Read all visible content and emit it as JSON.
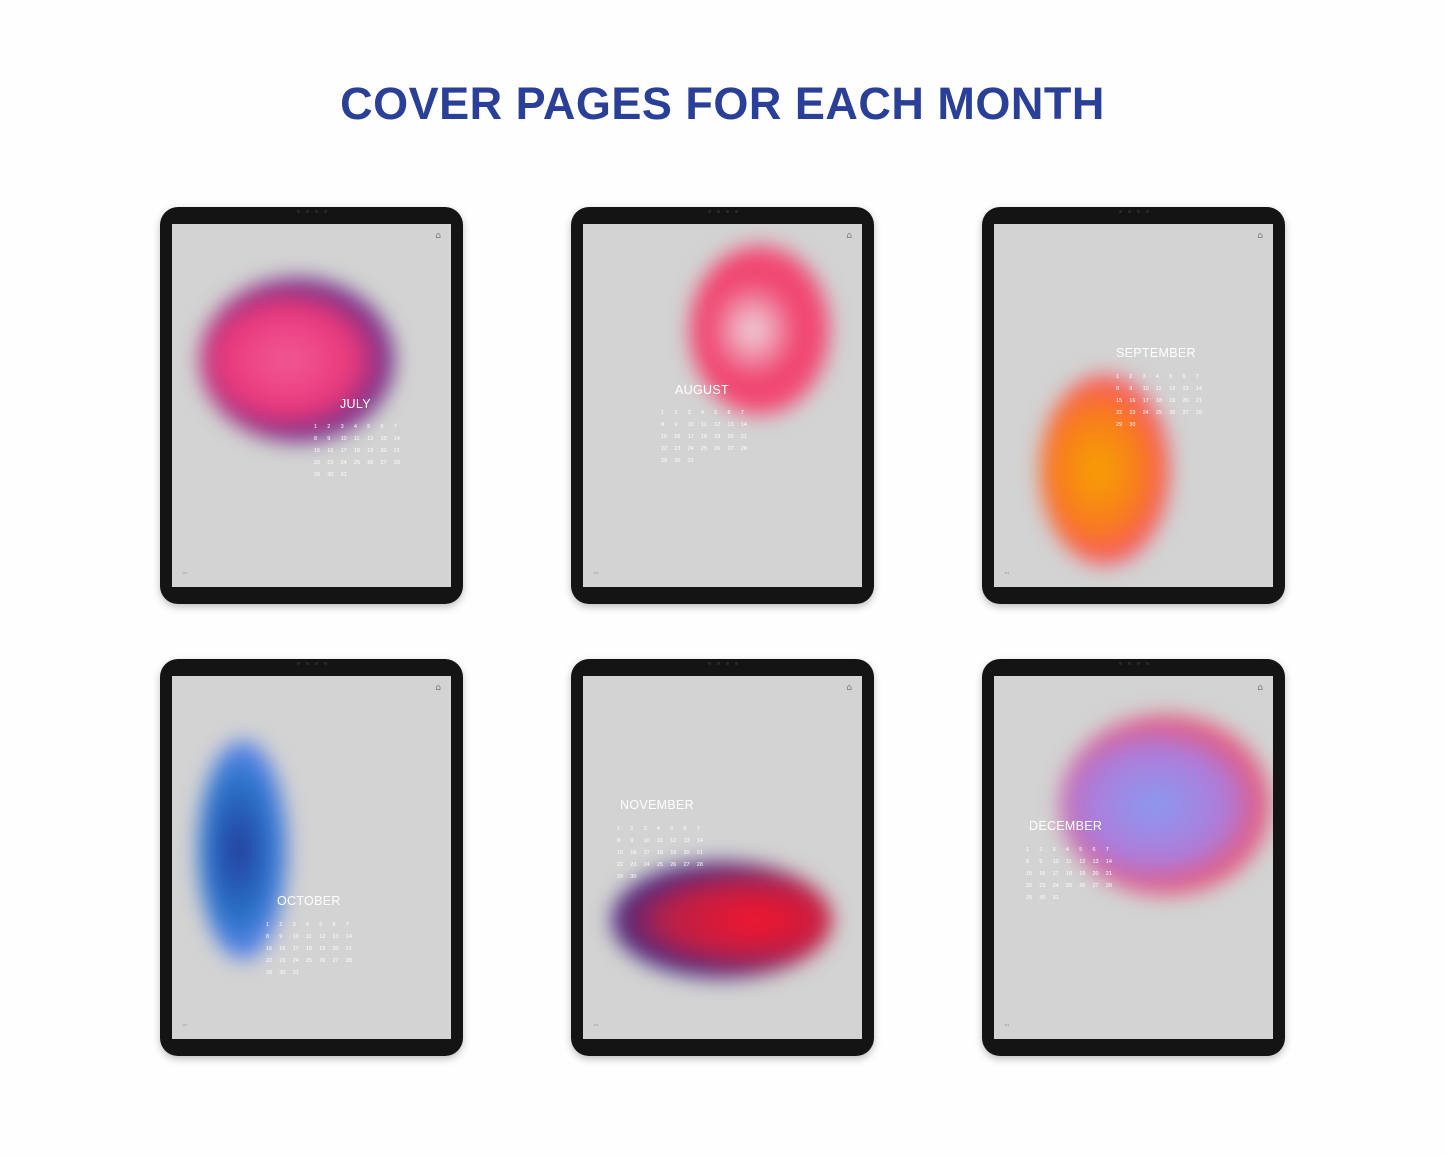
{
  "title": "COVER PAGES FOR EACH MONTH",
  "home_icon": "home-icon",
  "menu_icon": "more-dots-icon",
  "covers": [
    {
      "month": "JULY",
      "days": 31,
      "blob_colors": [
        "#f25a95",
        "#e8377a",
        "#4b2c8f"
      ]
    },
    {
      "month": "AUGUST",
      "days": 31,
      "blob_colors": [
        "#eedde3",
        "#f03e6a",
        "#f25a80"
      ]
    },
    {
      "month": "SEPTEMBER",
      "days": 30,
      "blob_colors": [
        "#f7a200",
        "#f87a20",
        "#f7507a"
      ]
    },
    {
      "month": "OCTOBER",
      "days": 31,
      "blob_colors": [
        "#233a9a",
        "#2a73c8",
        "#6f8ef2"
      ]
    },
    {
      "month": "NOVEMBER",
      "days": 30,
      "blob_colors": [
        "#f5152a",
        "#b8204a",
        "#2e2c8c"
      ]
    },
    {
      "month": "DECEMBER",
      "days": 31,
      "blob_colors": [
        "#8a9af0",
        "#b07ad8",
        "#f74e5e"
      ]
    }
  ]
}
